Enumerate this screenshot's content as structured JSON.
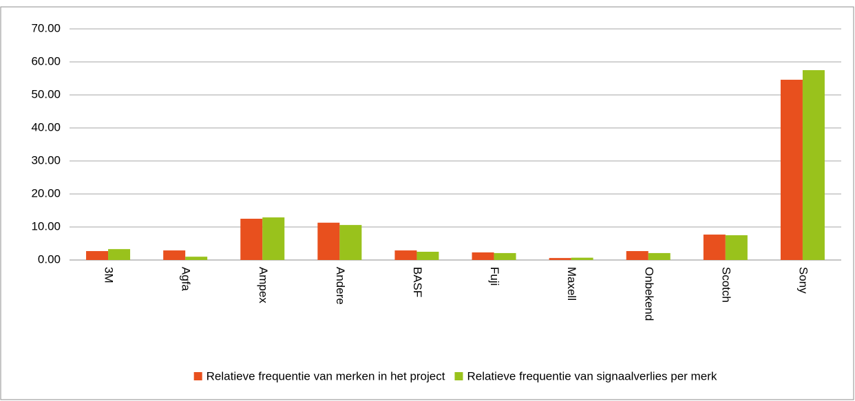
{
  "chart_data": {
    "type": "bar",
    "categories": [
      "3M",
      "Agfa",
      "Ampex",
      "Andere",
      "BASF",
      "Fuji",
      "Maxell",
      "Onbekend",
      "Scotch",
      "Sony"
    ],
    "series": [
      {
        "name": "Relatieve frequentie van merken in het project",
        "color": "#e8501e",
        "values": [
          2.7,
          2.9,
          12.5,
          11.3,
          2.9,
          2.3,
          0.6,
          2.7,
          7.7,
          54.6
        ]
      },
      {
        "name": "Relatieve frequentie van signaalverlies per merk",
        "color": "#99c21c",
        "values": [
          3.3,
          1.0,
          12.9,
          10.6,
          2.5,
          2.1,
          0.7,
          2.1,
          7.5,
          57.5
        ]
      }
    ],
    "ylim": [
      0,
      70
    ],
    "yticks": [
      {
        "value": 0,
        "label": "0.00"
      },
      {
        "value": 10,
        "label": "10.00"
      },
      {
        "value": 20,
        "label": "20.00"
      },
      {
        "value": 30,
        "label": "30.00"
      },
      {
        "value": 40,
        "label": "40.00"
      },
      {
        "value": 50,
        "label": "50.00"
      },
      {
        "value": 60,
        "label": "60.00"
      },
      {
        "value": 70,
        "label": "70.00"
      }
    ],
    "grid": true,
    "legend": "bottom"
  }
}
